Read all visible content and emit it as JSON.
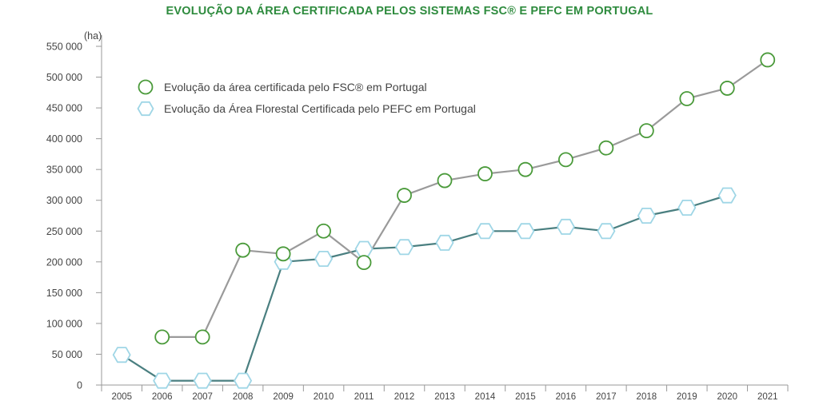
{
  "chart_data": {
    "type": "line",
    "title": "EVOLUÇÃO DA ÁREA CERTIFICADA PELOS SISTEMAS FSC® E PEFC EM PORTUGAL",
    "ylabel": "(ha)",
    "xlabel": "",
    "ylim": [
      0,
      550000
    ],
    "yticks": [
      0,
      50000,
      100000,
      150000,
      200000,
      250000,
      300000,
      350000,
      400000,
      450000,
      500000,
      550000
    ],
    "ytick_labels": [
      "0",
      "50 000",
      "100 000",
      "150 000",
      "200 000",
      "250 000",
      "300 000",
      "350 000",
      "400 000",
      "450 000",
      "500 000",
      "550 000"
    ],
    "categories": [
      "2005",
      "2006",
      "2007",
      "2008",
      "2009",
      "2010",
      "2011",
      "2012",
      "2013",
      "2014",
      "2015",
      "2016",
      "2017",
      "2018",
      "2019",
      "2020",
      "2021"
    ],
    "grid": false,
    "legend_position": "top-left",
    "series": [
      {
        "name": "Evolução da área certificada pelo FSC® em Portugal",
        "line_color": "#9a9a9a",
        "marker": "circle",
        "marker_color": "#4a9a3a",
        "values": [
          null,
          78000,
          78000,
          219000,
          213000,
          250000,
          199000,
          308000,
          332000,
          343000,
          350000,
          366000,
          385000,
          413000,
          465000,
          482000,
          528000
        ]
      },
      {
        "name": "Evolução da Área Florestal Certificada pelo PEFC em Portugal",
        "line_color": "#4a7f80",
        "marker": "hexagon",
        "marker_color": "#9fd6e6",
        "values": [
          49000,
          7000,
          7000,
          7000,
          200000,
          205000,
          221000,
          224000,
          231000,
          250000,
          250000,
          257000,
          250000,
          275000,
          288000,
          308000,
          null
        ]
      }
    ]
  }
}
